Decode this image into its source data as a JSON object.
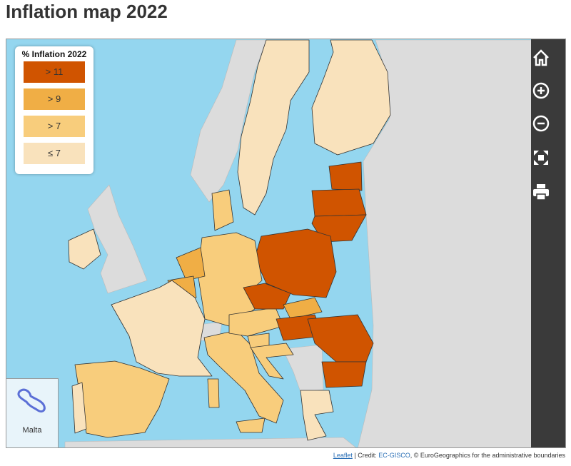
{
  "title": "Inflation map 2022",
  "legend": {
    "title": "% Inflation 2022",
    "items": [
      {
        "label": "> 11",
        "color": "#d05400"
      },
      {
        "label": "> 9",
        "color": "#f0ae45"
      },
      {
        "label": "> 7",
        "color": "#f8cd7c"
      },
      {
        "label": "≤ 7",
        "color": "#f9e2bc"
      }
    ]
  },
  "inset": {
    "label": "Malta"
  },
  "attribution": {
    "link": "Leaflet",
    "credit_prefix": "| Credit: ",
    "source": "EC-GISCO",
    "suffix": ", © EuroGeographics for the administrative boundaries"
  }
}
